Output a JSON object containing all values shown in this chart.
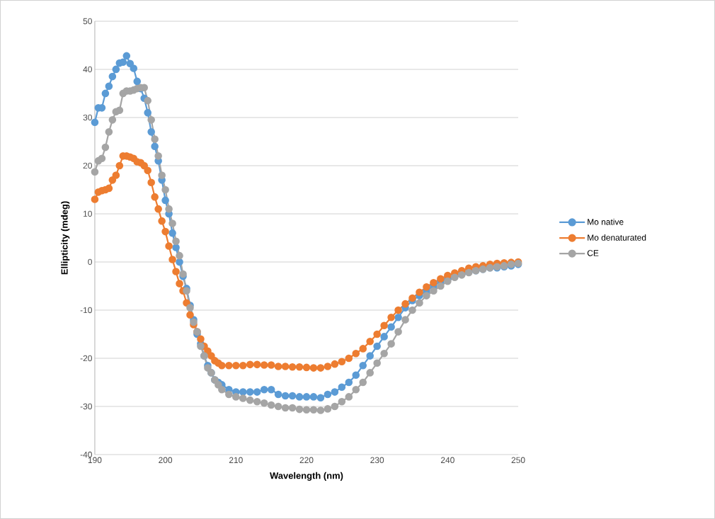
{
  "chart_data": {
    "type": "line",
    "xlabel": "Wavelength (nm)",
    "ylabel": "Ellipticity (mdeg)",
    "x": [
      190,
      190.5,
      191,
      191.5,
      192,
      192.5,
      193,
      193.5,
      194,
      194.5,
      195,
      195.5,
      196,
      196.5,
      197,
      197.5,
      198,
      198.5,
      199,
      199.5,
      200,
      200.5,
      201,
      201.5,
      202,
      202.5,
      203,
      203.5,
      204,
      204.5,
      205,
      205.5,
      206,
      206.5,
      207,
      207.5,
      208,
      209,
      210,
      211,
      212,
      213,
      214,
      215,
      216,
      217,
      218,
      219,
      220,
      221,
      222,
      223,
      224,
      225,
      226,
      227,
      228,
      229,
      230,
      231,
      232,
      233,
      234,
      235,
      236,
      237,
      238,
      239,
      240,
      241,
      242,
      243,
      244,
      245,
      246,
      247,
      248,
      249,
      250
    ],
    "series": [
      {
        "name": "Mo native",
        "color": "#5b9bd5",
        "values": [
          29,
          32,
          32,
          35,
          36.5,
          38.5,
          40,
          41.3,
          41.5,
          42.8,
          41.2,
          40.2,
          37.5,
          36,
          34,
          31,
          27,
          24,
          21,
          17,
          12.8,
          10,
          6,
          3,
          0,
          -3,
          -5.5,
          -9,
          -12,
          -15,
          -17,
          -19.5,
          -21.5,
          -23,
          -24.5,
          -25,
          -25.5,
          -26.5,
          -27,
          -27,
          -27,
          -27,
          -26.5,
          -26.5,
          -27.5,
          -27.8,
          -27.8,
          -28,
          -28,
          -28,
          -28.2,
          -27.5,
          -27,
          -26,
          -25,
          -23.5,
          -21.5,
          -19.5,
          -17.5,
          -15.5,
          -13.5,
          -11.5,
          -9.5,
          -8,
          -7,
          -6,
          -5,
          -4,
          -3.5,
          -3,
          -2.5,
          -2,
          -1.8,
          -1.5,
          -1.2,
          -1.2,
          -1,
          -0.8,
          -0.5
        ]
      },
      {
        "name": "Mo denaturated",
        "color": "#ed7d31",
        "values": [
          13,
          14.5,
          14.8,
          15,
          15.3,
          17,
          18,
          20,
          22,
          22,
          21.8,
          21.5,
          20.8,
          20.6,
          20,
          19,
          16.5,
          13.5,
          11,
          8.5,
          6.3,
          3.3,
          0.5,
          -2,
          -4.5,
          -6,
          -8.5,
          -11,
          -13,
          -14.5,
          -16,
          -17.5,
          -18.5,
          -19.5,
          -20.5,
          -21,
          -21.5,
          -21.5,
          -21.5,
          -21.5,
          -21.3,
          -21.3,
          -21.4,
          -21.4,
          -21.7,
          -21.7,
          -21.8,
          -21.8,
          -21.9,
          -22,
          -22,
          -21.7,
          -21.2,
          -20.7,
          -20,
          -19,
          -18,
          -16.5,
          -15,
          -13.2,
          -11.5,
          -10,
          -8.7,
          -7.5,
          -6.3,
          -5.2,
          -4.3,
          -3.5,
          -2.8,
          -2.3,
          -1.8,
          -1.3,
          -1,
          -0.8,
          -0.5,
          -0.3,
          -0.2,
          -0.1,
          0
        ]
      },
      {
        "name": "CE",
        "color": "#a5a5a5",
        "values": [
          18.7,
          21,
          21.5,
          23.8,
          27,
          29.5,
          31.2,
          31.5,
          35,
          35.5,
          35.5,
          35.7,
          36,
          36.2,
          36.2,
          33.5,
          29.5,
          25.5,
          22,
          18,
          15,
          11,
          8,
          4.3,
          1.3,
          -2.5,
          -6,
          -9.5,
          -12.5,
          -14.5,
          -17.5,
          -19.5,
          -22,
          -23,
          -24.5,
          -25.5,
          -26.5,
          -27.5,
          -28,
          -28.3,
          -28.7,
          -29,
          -29.3,
          -29.7,
          -30,
          -30.3,
          -30.3,
          -30.6,
          -30.7,
          -30.7,
          -30.8,
          -30.5,
          -30,
          -29,
          -28,
          -26.5,
          -25,
          -23,
          -21,
          -19,
          -17,
          -14.5,
          -12,
          -10,
          -8.5,
          -7,
          -6,
          -5,
          -4,
          -3.2,
          -2.7,
          -2.2,
          -1.8,
          -1.5,
          -1.2,
          -1,
          -0.8,
          -0.5,
          -0.3
        ]
      }
    ],
    "xlim": [
      190,
      250
    ],
    "xticks": [
      190,
      200,
      210,
      220,
      230,
      240,
      250
    ],
    "ylim": [
      -40,
      50
    ],
    "yticks": [
      -40,
      -30,
      -20,
      -10,
      0,
      10,
      20,
      30,
      40,
      50
    ],
    "grid": "y",
    "legend": "right",
    "marker": "circle",
    "line_style": "solid"
  }
}
